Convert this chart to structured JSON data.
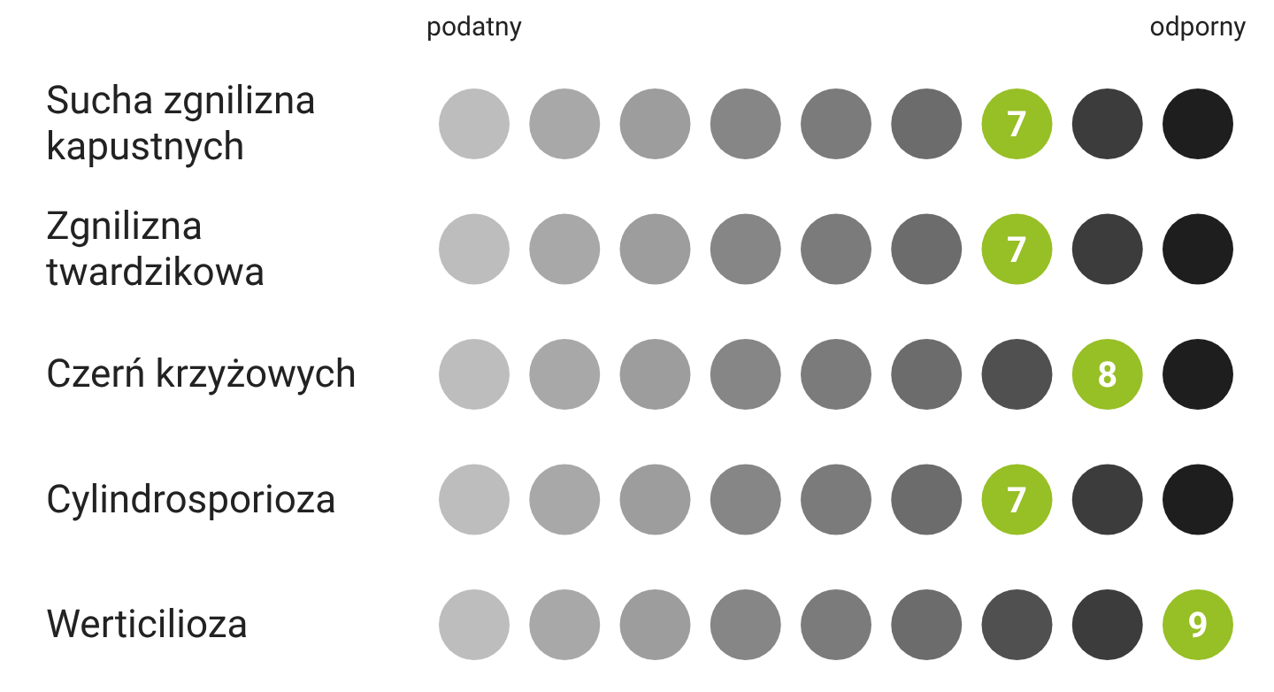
{
  "chart_data": {
    "type": "other",
    "categories": [
      "Sucha zgnilizna kapustnych",
      "Zgnilizna twardzikowa",
      "Czerń krzyżowych",
      "Cylindrosporioza",
      "Werticilioza"
    ],
    "values": [
      7,
      7,
      8,
      7,
      9
    ],
    "color": "#97bf26",
    "data_labels": true,
    "annotations": [
      "podatny",
      "odporny"
    ]
  }
}
